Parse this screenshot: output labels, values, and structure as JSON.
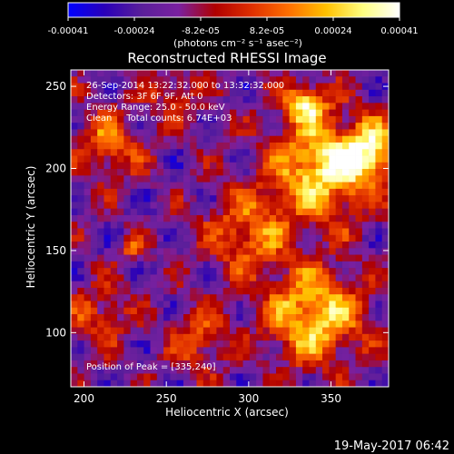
{
  "chart_data": {
    "type": "heatmap",
    "title": "Reconstructed RHESSI Image",
    "xlabel": "Heliocentric X (arcsec)",
    "ylabel": "Heliocentric Y (arcsec)",
    "xlim": [
      192,
      385
    ],
    "ylim": [
      67,
      260
    ],
    "xticks": [
      200,
      250,
      300,
      350
    ],
    "yticks": [
      100,
      150,
      200,
      250
    ],
    "colorbar": {
      "label": "(photons cm⁻² s⁻¹ asec⁻²)",
      "range": [
        -0.00041,
        0.00041
      ],
      "tick_labels": [
        "-0.00041",
        "-0.00024",
        "-8.2e-05",
        "8.2e-05",
        "0.00024",
        "0.00041"
      ],
      "colors": [
        "#0000ff",
        "#2a00b8",
        "#5a1f9a",
        "#7a20a0",
        "#b00000",
        "#e03000",
        "#ff7000",
        "#ffc000",
        "#ffff80",
        "#ffffff"
      ]
    },
    "annotations": [
      "26-Sep-2014 13:22:32.000 to 13:32:32.000",
      "Detectors: 3F 6F 9F, Att 0",
      "Energy Range: 25.0 - 50.0 keV",
      "Clean     Total counts: 6.74E+03"
    ],
    "peak_label": "Position of Peak = [335,240]",
    "peak": [
      335,
      240
    ],
    "grid": false
  },
  "footer": {
    "timestamp": "19-May-2017 06:42"
  }
}
